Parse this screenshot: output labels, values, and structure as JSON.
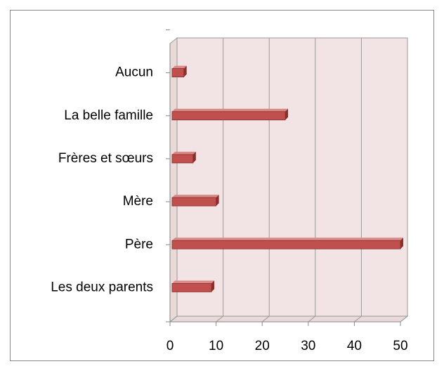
{
  "chart_data": {
    "type": "bar",
    "orientation": "horizontal",
    "categories": [
      "Aucun",
      "La belle famille",
      "Frères et sœurs",
      "Mère",
      "Père",
      "Les deux parents"
    ],
    "values": [
      3,
      25,
      5,
      10,
      50,
      9
    ],
    "color": "#c0504d",
    "xlim": [
      0,
      50
    ],
    "xticks": [
      0,
      10,
      20,
      30,
      40,
      50
    ],
    "grid": true
  }
}
